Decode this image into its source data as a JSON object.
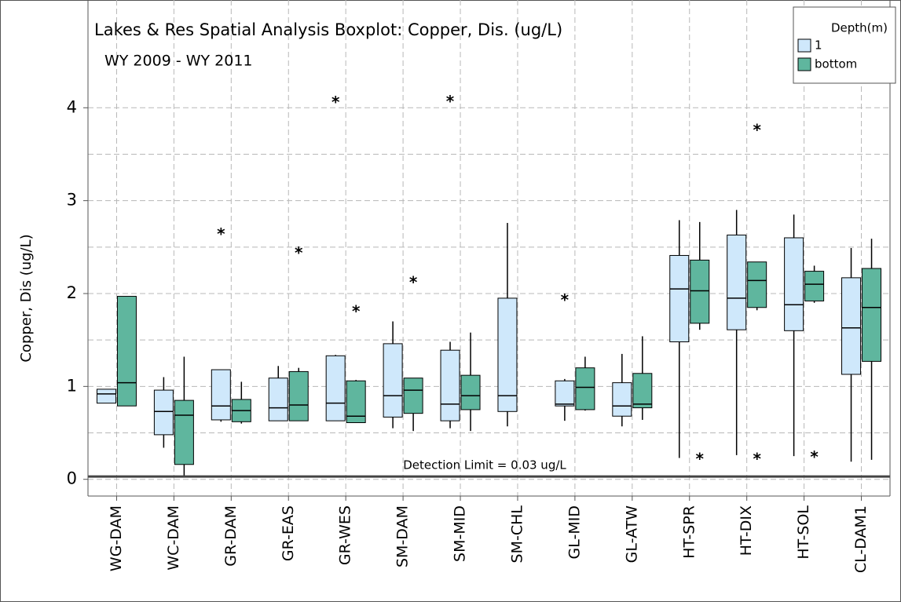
{
  "chart_data": {
    "type": "boxplot",
    "title": "Lakes & Res Spatial Analysis Boxplot: Copper, Dis. (ug/L)",
    "subtitle": "WY 2009 - WY 2011",
    "y_label": "Copper, Dis (ug/L)",
    "legend_title": "Depth(m)",
    "legend": "top-right",
    "categories": [
      "WG-DAM",
      "WC-DAM",
      "GR-DAM",
      "GR-EAS",
      "GR-WES",
      "SM-DAM",
      "SM-MID",
      "SM-CHL",
      "GL-MID",
      "GL-ATW",
      "HT-SPR",
      "HT-DIX",
      "HT-SOL",
      "CL-DAM1"
    ],
    "series": [
      {
        "name": "1",
        "color": "#cfe8fb",
        "boxes": [
          {
            "low": 0.82,
            "q1": 0.82,
            "median": 0.92,
            "q3": 0.97,
            "high": 0.97,
            "outliers": []
          },
          {
            "low": 0.34,
            "q1": 0.48,
            "median": 0.73,
            "q3": 0.96,
            "high": 1.1,
            "outliers": []
          },
          {
            "low": 0.62,
            "q1": 0.64,
            "median": 0.79,
            "q3": 1.18,
            "high": 1.18,
            "outliers": [
              2.67
            ]
          },
          {
            "low": 0.63,
            "q1": 0.63,
            "median": 0.77,
            "q3": 1.09,
            "high": 1.22,
            "outliers": []
          },
          {
            "low": 0.63,
            "q1": 0.63,
            "median": 0.82,
            "q3": 1.33,
            "high": 1.34,
            "outliers": [
              4.09
            ]
          },
          {
            "low": 0.55,
            "q1": 0.67,
            "median": 0.9,
            "q3": 1.46,
            "high": 1.7,
            "outliers": []
          },
          {
            "low": 0.55,
            "q1": 0.63,
            "median": 0.81,
            "q3": 1.39,
            "high": 1.48,
            "outliers": [
              4.1
            ]
          },
          {
            "low": 0.57,
            "q1": 0.73,
            "median": 0.9,
            "q3": 1.95,
            "high": 2.76,
            "outliers": []
          },
          {
            "low": 0.63,
            "q1": 0.79,
            "median": 0.81,
            "q3": 1.06,
            "high": 1.08,
            "outliers": [
              1.96
            ]
          },
          {
            "low": 0.57,
            "q1": 0.68,
            "median": 0.79,
            "q3": 1.04,
            "high": 1.35,
            "outliers": []
          },
          {
            "low": 0.23,
            "q1": 1.48,
            "median": 2.05,
            "q3": 2.41,
            "high": 2.79,
            "outliers": []
          },
          {
            "low": 0.26,
            "q1": 1.61,
            "median": 1.95,
            "q3": 2.63,
            "high": 2.9,
            "outliers": []
          },
          {
            "low": 0.25,
            "q1": 1.6,
            "median": 1.88,
            "q3": 2.6,
            "high": 2.85,
            "outliers": []
          },
          {
            "low": 0.19,
            "q1": 1.13,
            "median": 1.63,
            "q3": 2.17,
            "high": 2.49,
            "outliers": []
          }
        ]
      },
      {
        "name": "bottom",
        "color": "#5fb69e",
        "boxes": [
          {
            "low": 0.79,
            "q1": 0.79,
            "median": 1.04,
            "q3": 1.97,
            "high": 1.97,
            "outliers": []
          },
          {
            "low": 0.03,
            "q1": 0.16,
            "median": 0.69,
            "q3": 0.85,
            "high": 1.32,
            "outliers": []
          },
          {
            "low": 0.6,
            "q1": 0.62,
            "median": 0.74,
            "q3": 0.86,
            "high": 1.05,
            "outliers": []
          },
          {
            "low": 0.63,
            "q1": 0.63,
            "median": 0.8,
            "q3": 1.16,
            "high": 1.2,
            "outliers": [
              2.47
            ]
          },
          {
            "low": 0.61,
            "q1": 0.61,
            "median": 0.68,
            "q3": 1.06,
            "high": 1.07,
            "outliers": [
              1.84
            ]
          },
          {
            "low": 0.52,
            "q1": 0.71,
            "median": 0.96,
            "q3": 1.09,
            "high": 1.09,
            "outliers": [
              2.15
            ]
          },
          {
            "low": 0.52,
            "q1": 0.75,
            "median": 0.9,
            "q3": 1.12,
            "high": 1.58,
            "outliers": []
          },
          null,
          {
            "low": 0.74,
            "q1": 0.75,
            "median": 0.99,
            "q3": 1.2,
            "high": 1.32,
            "outliers": []
          },
          {
            "low": 0.64,
            "q1": 0.77,
            "median": 0.81,
            "q3": 1.14,
            "high": 1.54,
            "outliers": []
          },
          {
            "low": 1.61,
            "q1": 1.68,
            "median": 2.03,
            "q3": 2.36,
            "high": 2.77,
            "outliers": [
              0.25
            ]
          },
          {
            "low": 1.82,
            "q1": 1.85,
            "median": 2.14,
            "q3": 2.34,
            "high": 2.34,
            "outliers": [
              3.79,
              0.25
            ]
          },
          {
            "low": 1.9,
            "q1": 1.92,
            "median": 2.1,
            "q3": 2.24,
            "high": 2.3,
            "outliers": [
              0.27
            ]
          },
          {
            "low": 0.21,
            "q1": 1.27,
            "median": 1.85,
            "q3": 2.27,
            "high": 2.59,
            "outliers": []
          }
        ]
      }
    ],
    "outlier_symbol": "*",
    "reference_line": {
      "value": 0.03,
      "label": "Detection Limit = 0.03 ug/L"
    },
    "ylim": [
      -0.18,
      5.16
    ],
    "yticks": [
      0,
      1,
      2,
      3,
      4
    ],
    "minor_grid": [
      0.5,
      1.5,
      2.5,
      3.5
    ],
    "grid": true
  }
}
